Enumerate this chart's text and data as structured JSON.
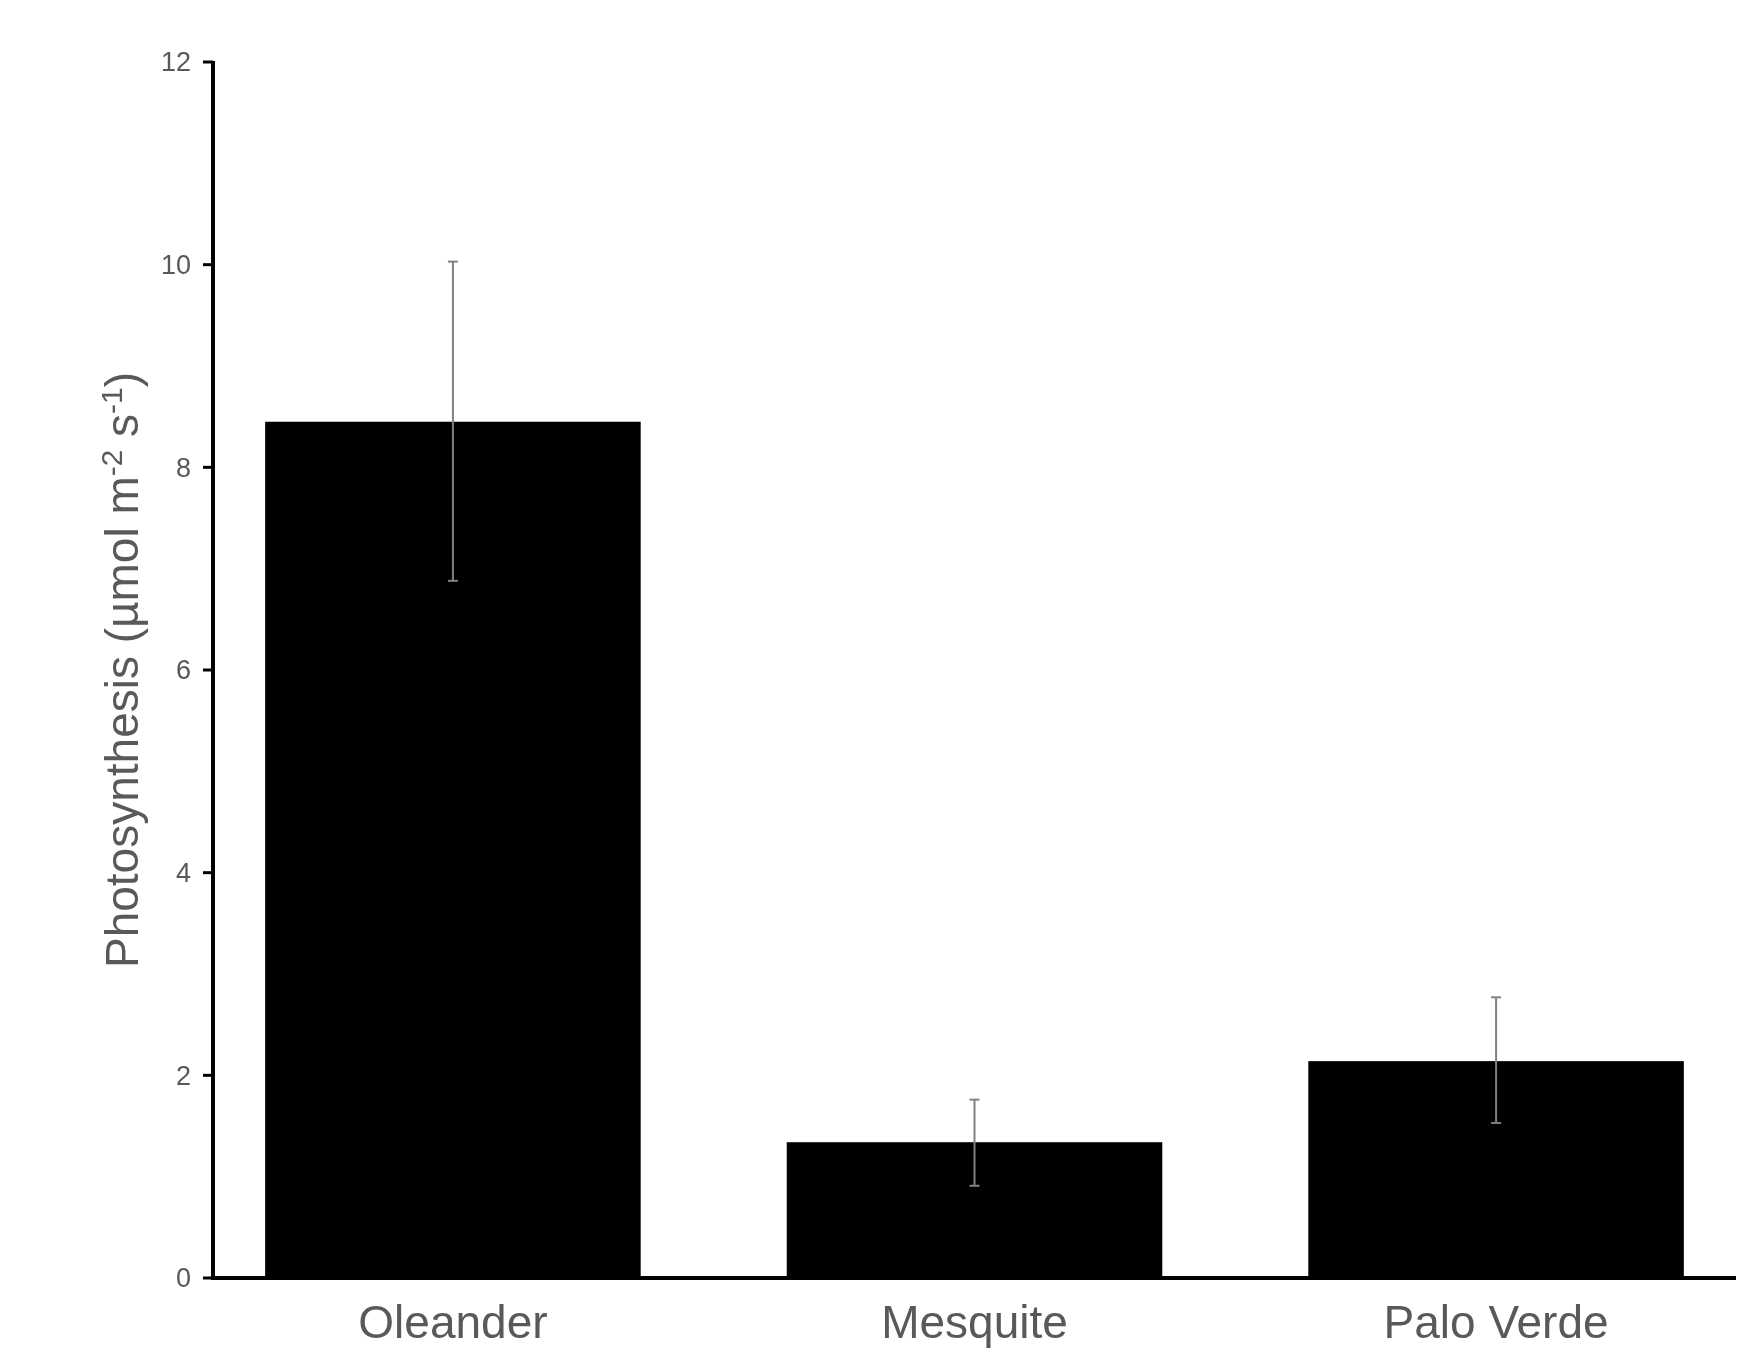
{
  "chart_data": {
    "type": "bar",
    "ylabel": "Photosynthesis (µmol m$^{-2}$ s$^{-1}$)",
    "categories": [
      "Oleander",
      "Mesquite",
      "Palo Verde"
    ],
    "values": [
      8.45,
      1.34,
      2.14
    ],
    "errors": [
      [
        6.88,
        10.03
      ],
      [
        0.91,
        1.76
      ],
      [
        1.53,
        2.77
      ]
    ],
    "color": "#000000",
    "ylim": [
      0,
      12
    ],
    "yticks": [
      0,
      2,
      4,
      6,
      8,
      10,
      12
    ],
    "grid": false
  }
}
